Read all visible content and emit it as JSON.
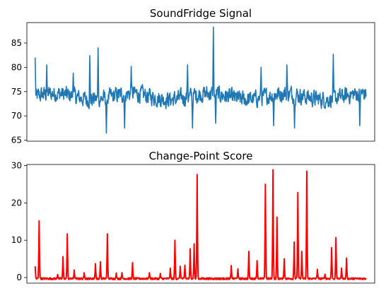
{
  "chart_data": [
    {
      "type": "line",
      "title": "SoundFridge Signal",
      "xlabel": "",
      "ylabel": "",
      "ylim": [
        64.8,
        89.2
      ],
      "yticks": [
        65,
        70,
        75,
        80,
        85
      ],
      "xlim": [
        -25,
        1025
      ],
      "x_ticks_shown": false,
      "grid": false,
      "color": "#1f77b4",
      "baseline": 74.0,
      "noise_amplitude": 2.6,
      "points": [
        {
          "x": 0,
          "y": 82.0
        },
        {
          "x": 35,
          "y": 80.5
        },
        {
          "x": 115,
          "y": 78.8
        },
        {
          "x": 165,
          "y": 82.4
        },
        {
          "x": 190,
          "y": 84.0
        },
        {
          "x": 215,
          "y": 66.5
        },
        {
          "x": 270,
          "y": 67.5
        },
        {
          "x": 290,
          "y": 80.2
        },
        {
          "x": 460,
          "y": 80.5
        },
        {
          "x": 475,
          "y": 67.5
        },
        {
          "x": 538,
          "y": 88.3
        },
        {
          "x": 545,
          "y": 68.5
        },
        {
          "x": 682,
          "y": 80.0
        },
        {
          "x": 720,
          "y": 68.0
        },
        {
          "x": 760,
          "y": 80.5
        },
        {
          "x": 783,
          "y": 67.5
        },
        {
          "x": 900,
          "y": 82.7
        },
        {
          "x": 980,
          "y": 68.0
        }
      ]
    },
    {
      "type": "line",
      "title": "Change-Point Score",
      "xlabel": "",
      "ylabel": "",
      "ylim": [
        -1.5,
        30.3
      ],
      "yticks": [
        0,
        10,
        20,
        30
      ],
      "xlim": [
        -25,
        1025
      ],
      "x_ticks_shown": false,
      "grid": false,
      "color": "#ff0000",
      "baseline": -0.3,
      "peaks": [
        {
          "x": 0,
          "y": 3.0
        },
        {
          "x": 12,
          "y": 15.2
        },
        {
          "x": 68,
          "y": 0.8
        },
        {
          "x": 84,
          "y": 5.6
        },
        {
          "x": 97,
          "y": 11.7
        },
        {
          "x": 118,
          "y": 2.0
        },
        {
          "x": 148,
          "y": 1.3
        },
        {
          "x": 182,
          "y": 3.7
        },
        {
          "x": 197,
          "y": 4.2
        },
        {
          "x": 218,
          "y": 11.7
        },
        {
          "x": 245,
          "y": 1.2
        },
        {
          "x": 262,
          "y": 1.3
        },
        {
          "x": 294,
          "y": 4.0
        },
        {
          "x": 345,
          "y": 1.3
        },
        {
          "x": 378,
          "y": 1.1
        },
        {
          "x": 408,
          "y": 2.5
        },
        {
          "x": 422,
          "y": 10.0
        },
        {
          "x": 438,
          "y": 3.0
        },
        {
          "x": 452,
          "y": 3.3
        },
        {
          "x": 468,
          "y": 7.7
        },
        {
          "x": 480,
          "y": 9.0
        },
        {
          "x": 489,
          "y": 27.6
        },
        {
          "x": 592,
          "y": 3.2
        },
        {
          "x": 612,
          "y": 2.3
        },
        {
          "x": 645,
          "y": 7.0
        },
        {
          "x": 670,
          "y": 4.5
        },
        {
          "x": 695,
          "y": 25.0
        },
        {
          "x": 718,
          "y": 28.9
        },
        {
          "x": 730,
          "y": 16.2
        },
        {
          "x": 752,
          "y": 5.0
        },
        {
          "x": 782,
          "y": 9.5
        },
        {
          "x": 793,
          "y": 22.8
        },
        {
          "x": 805,
          "y": 7.0
        },
        {
          "x": 820,
          "y": 28.5
        },
        {
          "x": 852,
          "y": 2.2
        },
        {
          "x": 875,
          "y": 0.9
        },
        {
          "x": 895,
          "y": 8.0
        },
        {
          "x": 908,
          "y": 10.7
        },
        {
          "x": 925,
          "y": 2.5
        },
        {
          "x": 940,
          "y": 5.2
        }
      ]
    }
  ]
}
